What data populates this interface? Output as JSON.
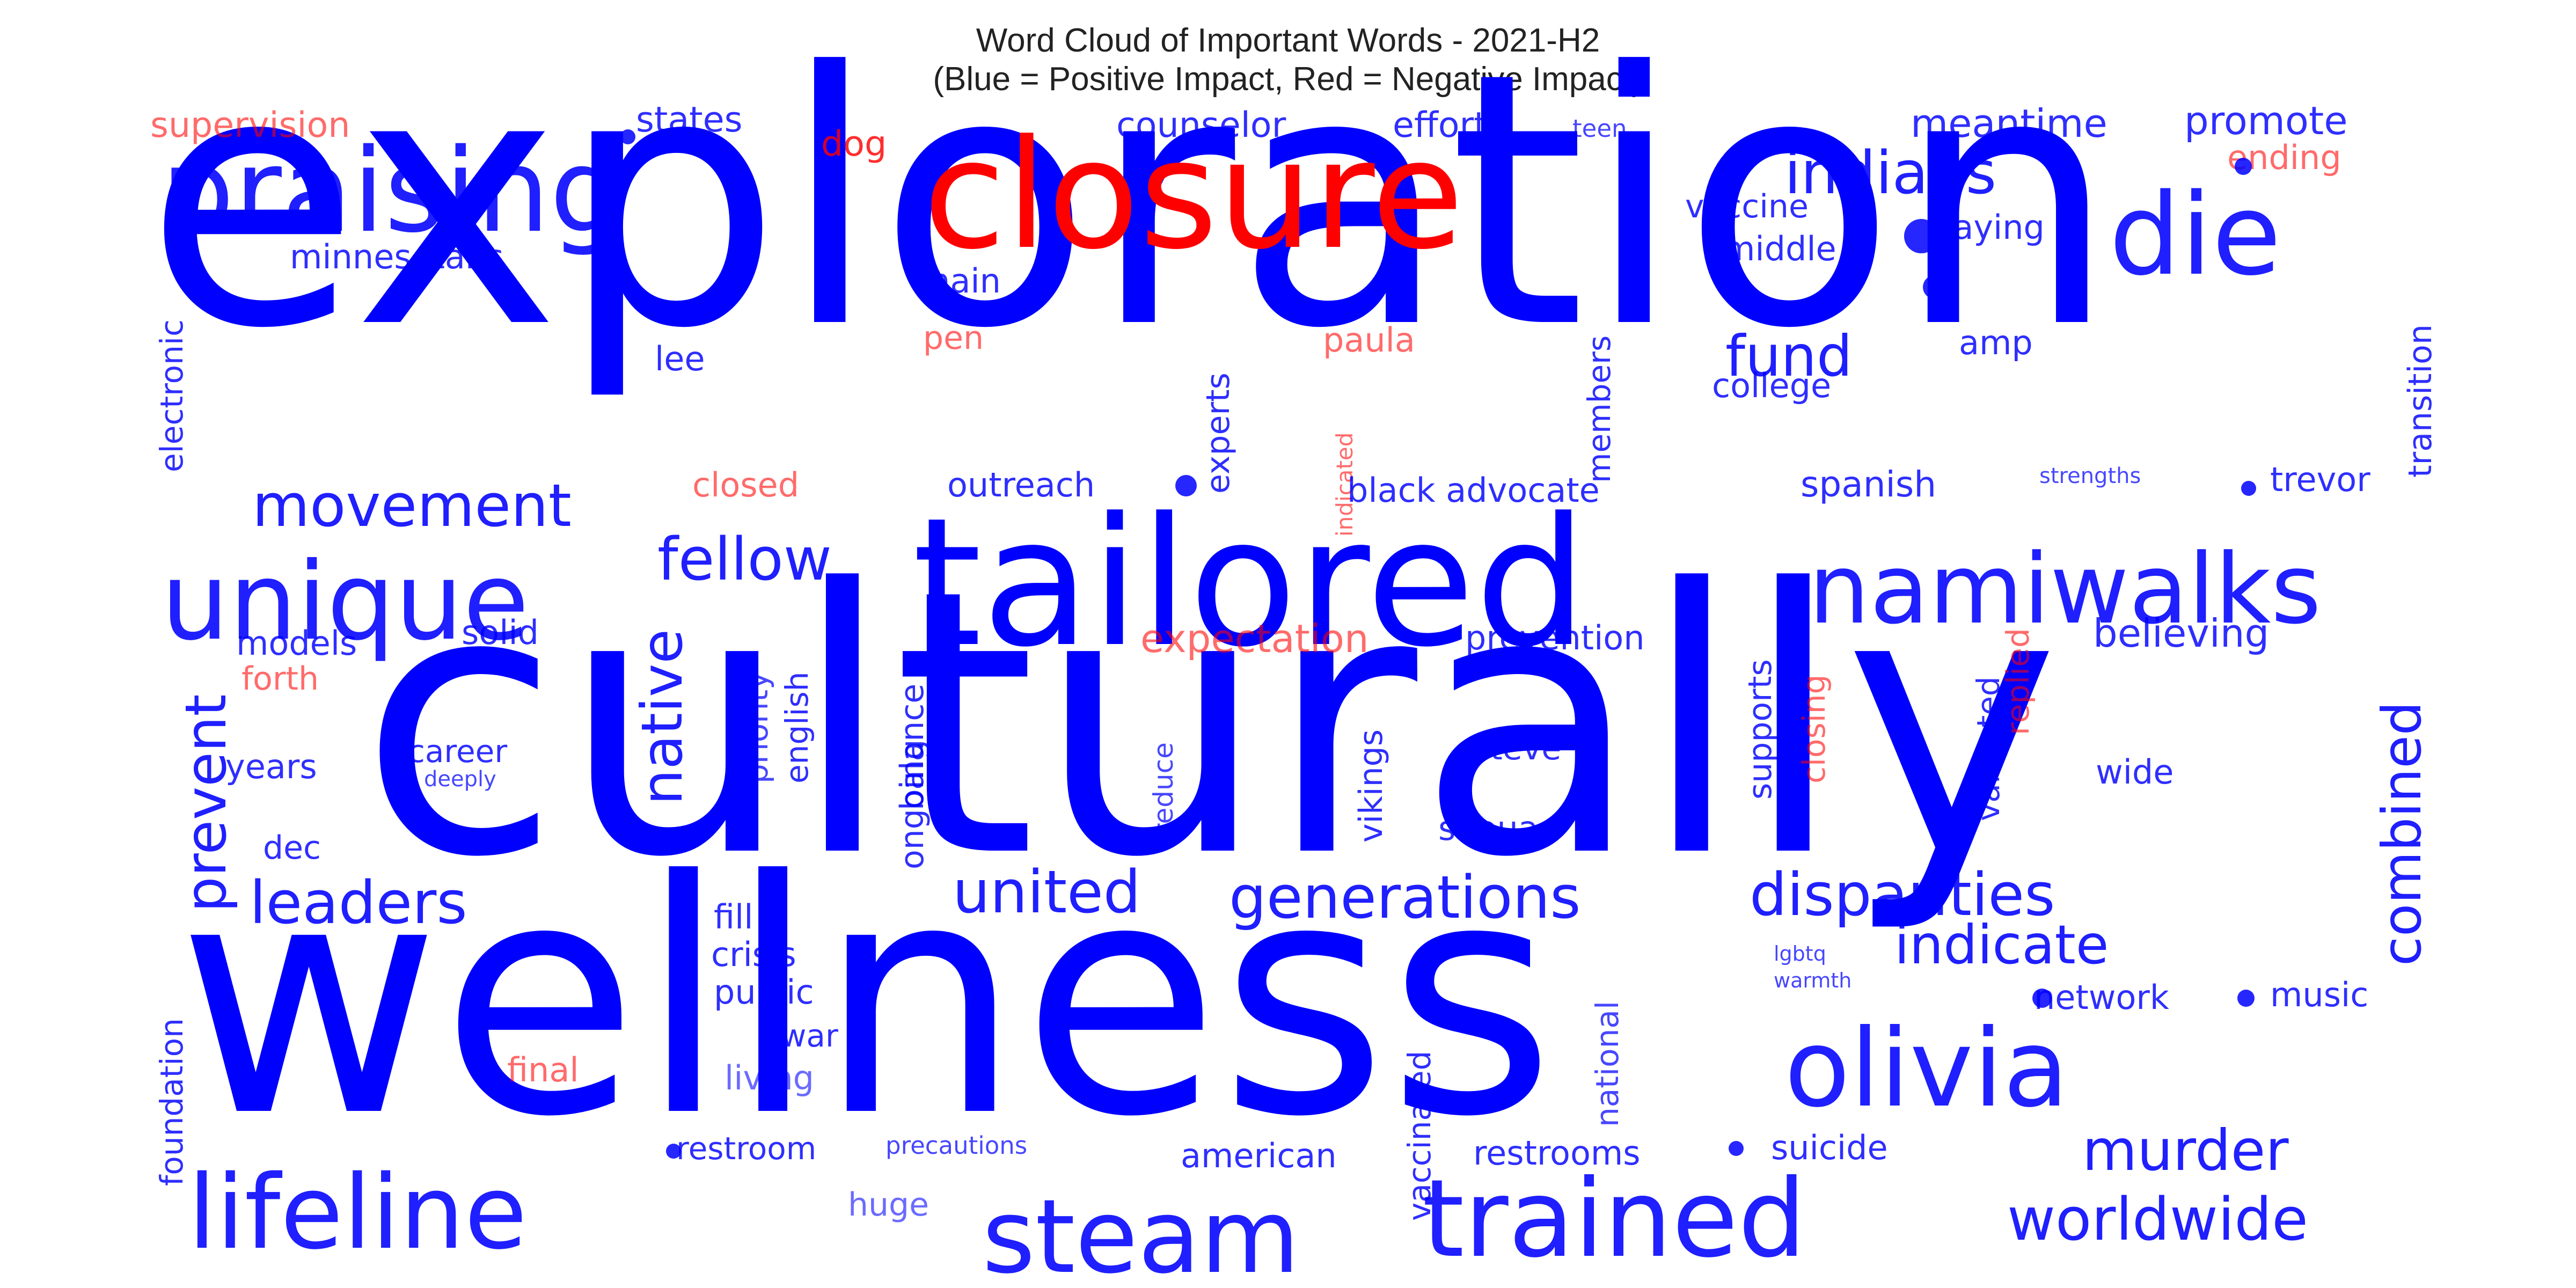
{
  "chart_data": {
    "type": "wordcloud",
    "title": "Word Cloud of Important Words - 2021-H2",
    "subtitle": "(Blue = Positive Impact, Red = Negative Impact)",
    "colors": {
      "positive": "#0000ff",
      "negative": "#ff0000"
    },
    "words": [
      {
        "text": "exploration",
        "impact": "positive",
        "weight": 1.0
      },
      {
        "text": "culturally",
        "impact": "positive",
        "weight": 0.99
      },
      {
        "text": "wellness",
        "impact": "positive",
        "weight": 0.97
      },
      {
        "text": "tailored",
        "impact": "positive",
        "weight": 0.62
      },
      {
        "text": "closure",
        "impact": "negative",
        "weight": 0.55
      },
      {
        "text": "praising",
        "impact": "positive",
        "weight": 0.42
      },
      {
        "text": "unique",
        "impact": "positive",
        "weight": 0.38
      },
      {
        "text": "namiwalks",
        "impact": "positive",
        "weight": 0.36
      },
      {
        "text": "lifeline",
        "impact": "positive",
        "weight": 0.41
      },
      {
        "text": "olivia",
        "impact": "positive",
        "weight": 0.4
      },
      {
        "text": "trained",
        "impact": "positive",
        "weight": 0.4
      },
      {
        "text": "steam",
        "impact": "positive",
        "weight": 0.36
      },
      {
        "text": "die",
        "impact": "positive",
        "weight": 0.38
      },
      {
        "text": "indians",
        "impact": "positive",
        "weight": 0.22
      },
      {
        "text": "fund",
        "impact": "positive",
        "weight": 0.2
      },
      {
        "text": "movement",
        "impact": "positive",
        "weight": 0.2
      },
      {
        "text": "fellow",
        "impact": "positive",
        "weight": 0.2
      },
      {
        "text": "leaders",
        "impact": "positive",
        "weight": 0.2
      },
      {
        "text": "united",
        "impact": "positive",
        "weight": 0.2
      },
      {
        "text": "generations",
        "impact": "positive",
        "weight": 0.22
      },
      {
        "text": "disparities",
        "impact": "positive",
        "weight": 0.2
      },
      {
        "text": "indicate",
        "impact": "positive",
        "weight": 0.18
      },
      {
        "text": "murder",
        "impact": "positive",
        "weight": 0.2
      },
      {
        "text": "worldwide",
        "impact": "positive",
        "weight": 0.2
      },
      {
        "text": "combined",
        "impact": "positive",
        "weight": 0.2
      },
      {
        "text": "prevent",
        "impact": "positive",
        "weight": 0.2
      },
      {
        "text": "native",
        "impact": "positive",
        "weight": 0.2
      },
      {
        "text": "supervision",
        "impact": "negative",
        "weight": 0.1
      },
      {
        "text": "states",
        "impact": "positive",
        "weight": 0.1
      },
      {
        "text": "dog",
        "impact": "negative",
        "weight": 0.1
      },
      {
        "text": "counselor",
        "impact": "positive",
        "weight": 0.1
      },
      {
        "text": "efforts",
        "impact": "positive",
        "weight": 0.1
      },
      {
        "text": "teen",
        "impact": "positive",
        "weight": 0.06
      },
      {
        "text": "meantime",
        "impact": "positive",
        "weight": 0.12
      },
      {
        "text": "promote",
        "impact": "positive",
        "weight": 0.12
      },
      {
        "text": "ending",
        "impact": "negative",
        "weight": 0.1
      },
      {
        "text": "minnesotans",
        "impact": "positive",
        "weight": 0.1
      },
      {
        "text": "vaccine",
        "impact": "positive",
        "weight": 0.1
      },
      {
        "text": "paying",
        "impact": "positive",
        "weight": 0.1
      },
      {
        "text": "middle",
        "impact": "positive",
        "weight": 0.1
      },
      {
        "text": "main",
        "impact": "positive",
        "weight": 0.1
      },
      {
        "text": "transition",
        "impact": "positive",
        "weight": 0.1
      },
      {
        "text": "electronic",
        "impact": "positive",
        "weight": 0.1
      },
      {
        "text": "lee",
        "impact": "positive",
        "weight": 0.1
      },
      {
        "text": "pen",
        "impact": "negative",
        "weight": 0.1
      },
      {
        "text": "paula",
        "impact": "negative",
        "weight": 0.1
      },
      {
        "text": "members",
        "impact": "positive",
        "weight": 0.1
      },
      {
        "text": "college",
        "impact": "positive",
        "weight": 0.1
      },
      {
        "text": "amp",
        "impact": "positive",
        "weight": 0.1
      },
      {
        "text": "indicated",
        "impact": "negative",
        "weight": 0.05
      },
      {
        "text": "experts",
        "impact": "positive",
        "weight": 0.1
      },
      {
        "text": "closed",
        "impact": "negative",
        "weight": 0.1
      },
      {
        "text": "outreach",
        "impact": "positive",
        "weight": 0.1
      },
      {
        "text": "black advocate",
        "impact": "positive",
        "weight": 0.12
      },
      {
        "text": "spanish",
        "impact": "positive",
        "weight": 0.12
      },
      {
        "text": "strengths",
        "impact": "positive",
        "weight": 0.05
      },
      {
        "text": "trevor",
        "impact": "positive",
        "weight": 0.1
      },
      {
        "text": "expectation",
        "impact": "negative",
        "weight": 0.12
      },
      {
        "text": "prevention",
        "impact": "positive",
        "weight": 0.1
      },
      {
        "text": "believing",
        "impact": "positive",
        "weight": 0.12
      },
      {
        "text": "models",
        "impact": "positive",
        "weight": 0.1
      },
      {
        "text": "solid",
        "impact": "positive",
        "weight": 0.1
      },
      {
        "text": "forth",
        "impact": "negative",
        "weight": 0.1
      },
      {
        "text": "priority",
        "impact": "positive",
        "weight": 0.1
      },
      {
        "text": "english",
        "impact": "positive",
        "weight": 0.1
      },
      {
        "text": "balance",
        "impact": "positive",
        "weight": 0.1
      },
      {
        "text": "ongoing",
        "impact": "positive",
        "weight": 0.1
      },
      {
        "text": "reduce",
        "impact": "positive",
        "weight": 0.08
      },
      {
        "text": "vikings",
        "impact": "positive",
        "weight": 0.1
      },
      {
        "text": "steve",
        "impact": "positive",
        "weight": 0.1
      },
      {
        "text": "supports",
        "impact": "positive",
        "weight": 0.1
      },
      {
        "text": "closing",
        "impact": "negative",
        "weight": 0.1
      },
      {
        "text": "validated",
        "impact": "positive",
        "weight": 0.1
      },
      {
        "text": "replied",
        "impact": "negative",
        "weight": 0.1
      },
      {
        "text": "wide",
        "impact": "positive",
        "weight": 0.1
      },
      {
        "text": "years",
        "impact": "positive",
        "weight": 0.1
      },
      {
        "text": "career",
        "impact": "positive",
        "weight": 0.1
      },
      {
        "text": "deeply",
        "impact": "positive",
        "weight": 0.05
      },
      {
        "text": "shoua",
        "impact": "positive",
        "weight": 0.1
      },
      {
        "text": "dec",
        "impact": "positive",
        "weight": 0.1
      },
      {
        "text": "fill",
        "impact": "positive",
        "weight": 0.1
      },
      {
        "text": "crisis",
        "impact": "positive",
        "weight": 0.1
      },
      {
        "text": "public",
        "impact": "positive",
        "weight": 0.1
      },
      {
        "text": "war",
        "impact": "positive",
        "weight": 0.1
      },
      {
        "text": "living",
        "impact": "positive",
        "weight": 0.1
      },
      {
        "text": "final",
        "impact": "negative",
        "weight": 0.1
      },
      {
        "text": "foundation",
        "impact": "positive",
        "weight": 0.1
      },
      {
        "text": "vaccinated",
        "impact": "positive",
        "weight": 0.1
      },
      {
        "text": "national",
        "impact": "positive",
        "weight": 0.1
      },
      {
        "text": "lgbtq",
        "impact": "positive",
        "weight": 0.05
      },
      {
        "text": "warmth",
        "impact": "positive",
        "weight": 0.05
      },
      {
        "text": "network",
        "impact": "positive",
        "weight": 0.1
      },
      {
        "text": "music",
        "impact": "positive",
        "weight": 0.1
      },
      {
        "text": "restroom",
        "impact": "positive",
        "weight": 0.1
      },
      {
        "text": "precautions",
        "impact": "positive",
        "weight": 0.06
      },
      {
        "text": "american",
        "impact": "positive",
        "weight": 0.1
      },
      {
        "text": "restrooms",
        "impact": "positive",
        "weight": 0.1
      },
      {
        "text": "suicide",
        "impact": "positive",
        "weight": 0.1
      },
      {
        "text": "huge",
        "impact": "positive",
        "weight": 0.1
      }
    ]
  }
}
